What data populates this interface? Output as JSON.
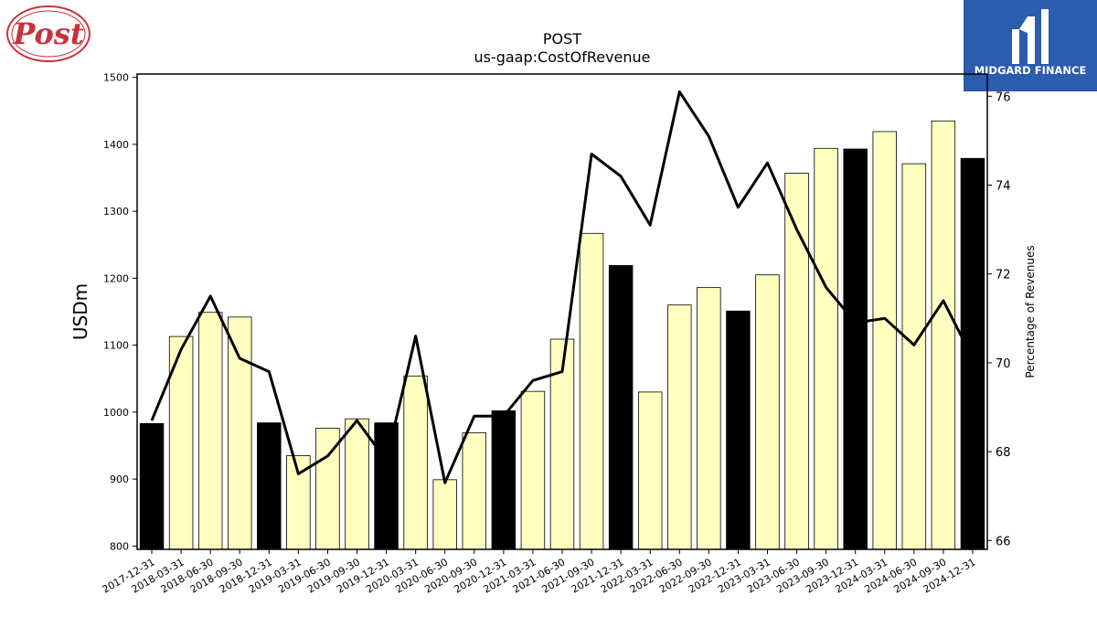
{
  "header": {
    "company_logo_text": "Post",
    "brand_text": "MIDGARD FINANCE",
    "colors": {
      "brand_bg": "#2b5cad",
      "logo_red": "#c8323c"
    }
  },
  "chart_data": {
    "type": "bar",
    "title": "POST",
    "subtitle": "us-gaap:CostOfRevenue",
    "ylabel": "USDm",
    "y2label": "Percentage of Revenues",
    "ylim": [
      795,
      1505
    ],
    "y2lim": [
      65.8,
      76.5
    ],
    "yticks": [
      800,
      900,
      1000,
      1100,
      1200,
      1300,
      1400,
      1500
    ],
    "y2ticks": [
      66,
      68,
      70,
      72,
      74,
      76
    ],
    "categories": [
      "2017-12-31",
      "2018-03-31",
      "2018-06-30",
      "2018-09-30",
      "2018-12-31",
      "2019-03-31",
      "2019-06-30",
      "2019-09-30",
      "2019-12-31",
      "2020-03-31",
      "2020-06-30",
      "2020-09-30",
      "2020-12-31",
      "2021-03-31",
      "2021-06-30",
      "2021-09-30",
      "2021-12-31",
      "2022-03-31",
      "2022-06-30",
      "2022-09-30",
      "2022-12-31",
      "2023-03-31",
      "2023-06-30",
      "2023-09-30",
      "2023-12-31",
      "2024-03-31",
      "2024-06-30",
      "2024-09-30",
      "2024-12-31"
    ],
    "values": [
      983,
      1113,
      1149,
      1142,
      984,
      935,
      976,
      990,
      984,
      1054,
      899,
      969,
      1002,
      1031,
      1109,
      1267,
      1219,
      1030,
      1160,
      1186,
      1151,
      1205,
      1357,
      1394,
      1393,
      1419,
      1371,
      1435,
      1379
    ],
    "highlight": [
      true,
      false,
      false,
      false,
      true,
      false,
      false,
      false,
      true,
      false,
      false,
      false,
      true,
      false,
      false,
      false,
      true,
      false,
      false,
      false,
      true,
      false,
      false,
      false,
      true,
      false,
      false,
      false,
      true
    ],
    "percentage": [
      68.7,
      70.3,
      71.5,
      70.1,
      69.8,
      67.5,
      67.9,
      68.7,
      67.8,
      70.6,
      67.3,
      68.8,
      68.8,
      69.6,
      69.8,
      74.7,
      74.2,
      73.1,
      76.1,
      75.1,
      73.5,
      74.5,
      73.0,
      71.7,
      70.9,
      71.0,
      70.4,
      71.4,
      70.1
    ],
    "grid": false,
    "colors": {
      "bar_highlight": "#000000",
      "bar_normal": "#ffffc0",
      "bar_edge": "#000000",
      "line": "#000000"
    }
  }
}
